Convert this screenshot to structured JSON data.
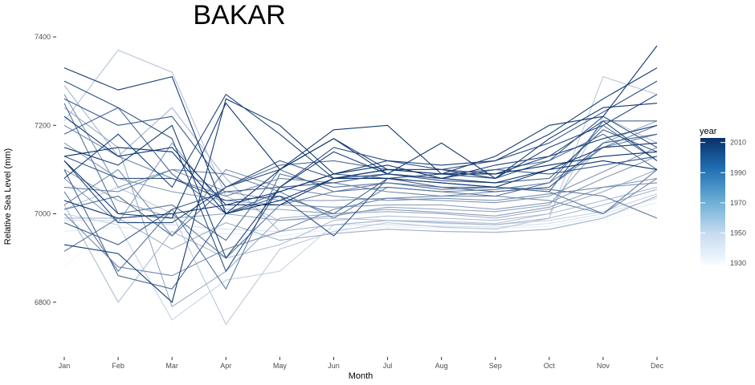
{
  "chart_data": {
    "type": "line",
    "title": "BAKAR",
    "xlabel": "Month",
    "ylabel": "Relative Sea Level (mm)",
    "categories": [
      "Jan",
      "Feb",
      "Mar",
      "Apr",
      "May",
      "Jun",
      "Jul",
      "Aug",
      "Sep",
      "Oct",
      "Nov",
      "Dec"
    ],
    "yticks": [
      6800,
      7000,
      7200,
      7400
    ],
    "ylim": [
      6718,
      7400
    ],
    "grid": false,
    "legend": {
      "title": "year",
      "placement": "right",
      "type": "colorbar",
      "ticks": [
        1930,
        1950,
        1970,
        1990,
        2010
      ],
      "range": [
        1929,
        2013
      ],
      "color_low": "#f7fbff",
      "color_high": "#08306b"
    },
    "series": [
      {
        "year": 1930,
        "values": [
          6880,
          6990,
          6960,
          6950,
          6945,
          6960,
          6965,
          6962,
          6960,
          6965,
          6985,
          7010
        ]
      },
      {
        "year": 1935,
        "values": [
          6960,
          6970,
          6960,
          6955,
          6950,
          6965,
          6970,
          6968,
          6967,
          6972,
          6995,
          7025
        ]
      },
      {
        "year": 1940,
        "values": [
          6985,
          6985,
          6975,
          6965,
          6960,
          6975,
          6975,
          6972,
          6970,
          6978,
          7000,
          7035
        ]
      },
      {
        "year": 1945,
        "values": [
          7000,
          6975,
          6760,
          6850,
          6870,
          6975,
          6985,
          6978,
          6975,
          6985,
          7005,
          7045
        ]
      },
      {
        "year": 1950,
        "values": [
          7010,
          7060,
          7000,
          6750,
          6920,
          6960,
          6980,
          6970,
          6965,
          6990,
          7310,
          7270
        ]
      },
      {
        "year": 1952,
        "values": [
          7210,
          7370,
          7320,
          7040,
          6985,
          6990,
          6985,
          6983,
          6978,
          7000,
          7220,
          7160
        ]
      },
      {
        "year": 1955,
        "values": [
          7020,
          6800,
          6960,
          6900,
          6930,
          6985,
          6995,
          6990,
          6985,
          7000,
          7030,
          7060
        ]
      },
      {
        "year": 1957,
        "values": [
          7290,
          7130,
          7240,
          7080,
          6960,
          6975,
          6985,
          6980,
          6975,
          6990,
          7020,
          7055
        ]
      },
      {
        "year": 1960,
        "values": [
          6990,
          6990,
          6920,
          6980,
          6940,
          6955,
          6965,
          6960,
          6958,
          6965,
          6990,
          7040
        ]
      },
      {
        "year": 1962,
        "values": [
          7240,
          7150,
          6790,
          6870,
          6990,
          7000,
          7005,
          7000,
          6990,
          7010,
          7050,
          7100
        ]
      },
      {
        "year": 1965,
        "values": [
          7100,
          7030,
          6990,
          7000,
          6985,
          6995,
          7015,
          7010,
          7005,
          7020,
          7160,
          7210
        ]
      },
      {
        "year": 1967,
        "values": [
          7080,
          6980,
          7160,
          7010,
          7010,
          7000,
          7010,
          7003,
          6995,
          7015,
          7060,
          7080
        ]
      },
      {
        "year": 1970,
        "values": [
          7160,
          7080,
          7050,
          7030,
          7020,
          7015,
          7020,
          7020,
          7010,
          7025,
          7080,
          7130
        ]
      },
      {
        "year": 1972,
        "values": [
          7270,
          7060,
          7100,
          7050,
          7030,
          7030,
          7035,
          7030,
          7025,
          7040,
          7095,
          7150
        ]
      },
      {
        "year": 1974,
        "values": [
          7020,
          7100,
          6950,
          7100,
          7060,
          7040,
          7030,
          7035,
          7030,
          7045,
          7060,
          7070
        ]
      },
      {
        "year": 1976,
        "values": [
          7000,
          6880,
          6860,
          6920,
          6960,
          7010,
          7035,
          7040,
          7040,
          7030,
          7000,
          7080
        ]
      },
      {
        "year": 1978,
        "values": [
          7200,
          7130,
          7080,
          7040,
          7080,
          7070,
          7050,
          7040,
          7050,
          7060,
          7150,
          7200
        ]
      },
      {
        "year": 1980,
        "values": [
          7060,
          7050,
          7100,
          7090,
          7050,
          6990,
          7060,
          7050,
          7055,
          7070,
          7150,
          7180
        ]
      },
      {
        "year": 1982,
        "values": [
          6915,
          6990,
          7000,
          6900,
          7020,
          7050,
          7070,
          7060,
          7060,
          7050,
          7000,
          7100
        ]
      },
      {
        "year": 1984,
        "values": [
          7050,
          6870,
          7010,
          6830,
          7090,
          7060,
          7070,
          7055,
          7060,
          7055,
          7040,
          6990
        ]
      },
      {
        "year": 1986,
        "values": [
          7250,
          7000,
          7020,
          6940,
          7100,
          7050,
          7060,
          7050,
          7040,
          7070,
          7200,
          7120
        ]
      },
      {
        "year": 1988,
        "values": [
          7010,
          7040,
          6950,
          7060,
          7110,
          7120,
          7100,
          7090,
          7100,
          7120,
          7180,
          7100
        ]
      },
      {
        "year": 1990,
        "values": [
          7180,
          7240,
          7090,
          7000,
          7040,
          7000,
          7080,
          7070,
          7060,
          7050,
          7210,
          7210
        ]
      },
      {
        "year": 1992,
        "values": [
          7100,
          6860,
          6830,
          7000,
          7050,
          7090,
          7080,
          7060,
          7050,
          7060,
          7160,
          7180
        ]
      },
      {
        "year": 1994,
        "values": [
          6980,
          6930,
          7010,
          7050,
          7060,
          7070,
          7090,
          7075,
          7070,
          7080,
          7190,
          7140
        ]
      },
      {
        "year": 1996,
        "values": [
          7260,
          7200,
          7220,
          7060,
          7120,
          7080,
          7090,
          7080,
          7100,
          7090,
          7110,
          7130
        ]
      },
      {
        "year": 1998,
        "values": [
          7130,
          7080,
          7080,
          7030,
          7040,
          6950,
          7080,
          7090,
          7080,
          7120,
          7220,
          7150
        ]
      },
      {
        "year": 2000,
        "values": [
          7300,
          7240,
          7170,
          6870,
          7060,
          7150,
          7120,
          7100,
          7120,
          7160,
          7230,
          7300
        ]
      },
      {
        "year": 2002,
        "values": [
          7120,
          6980,
          6980,
          7060,
          7100,
          7170,
          7100,
          7100,
          7090,
          7130,
          7210,
          7120
        ]
      },
      {
        "year": 2004,
        "values": [
          7080,
          7180,
          7060,
          7270,
          7180,
          7080,
          7100,
          7100,
          7080,
          7150,
          7200,
          7270
        ]
      },
      {
        "year": 2006,
        "values": [
          7150,
          7110,
          7200,
          6900,
          7060,
          7140,
          7090,
          7080,
          7110,
          7130,
          7170,
          7200
        ]
      },
      {
        "year": 2008,
        "values": [
          6930,
          6910,
          6800,
          7260,
          7200,
          7090,
          7120,
          7110,
          7120,
          7180,
          7260,
          7330
        ]
      },
      {
        "year": 2009,
        "values": [
          7330,
          7280,
          7310,
          7000,
          7100,
          7190,
          7200,
          7090,
          7130,
          7200,
          7220,
          7380
        ]
      },
      {
        "year": 2010,
        "values": [
          7120,
          7000,
          6990,
          7250,
          7100,
          7170,
          7090,
          7160,
          7080,
          7170,
          7240,
          7250
        ]
      },
      {
        "year": 2011,
        "values": [
          7030,
          6990,
          7000,
          7020,
          7020,
          7080,
          7080,
          7070,
          7060,
          7100,
          7150,
          7160
        ]
      },
      {
        "year": 2012,
        "values": [
          7220,
          7130,
          7150,
          7020,
          7050,
          7090,
          7110,
          7080,
          7070,
          7100,
          7120,
          7100
        ]
      },
      {
        "year": 2013,
        "values": [
          7130,
          7150,
          7140,
          7000,
          7030,
          7080,
          7100,
          7090,
          7090,
          7110,
          7130,
          7140
        ]
      }
    ]
  }
}
